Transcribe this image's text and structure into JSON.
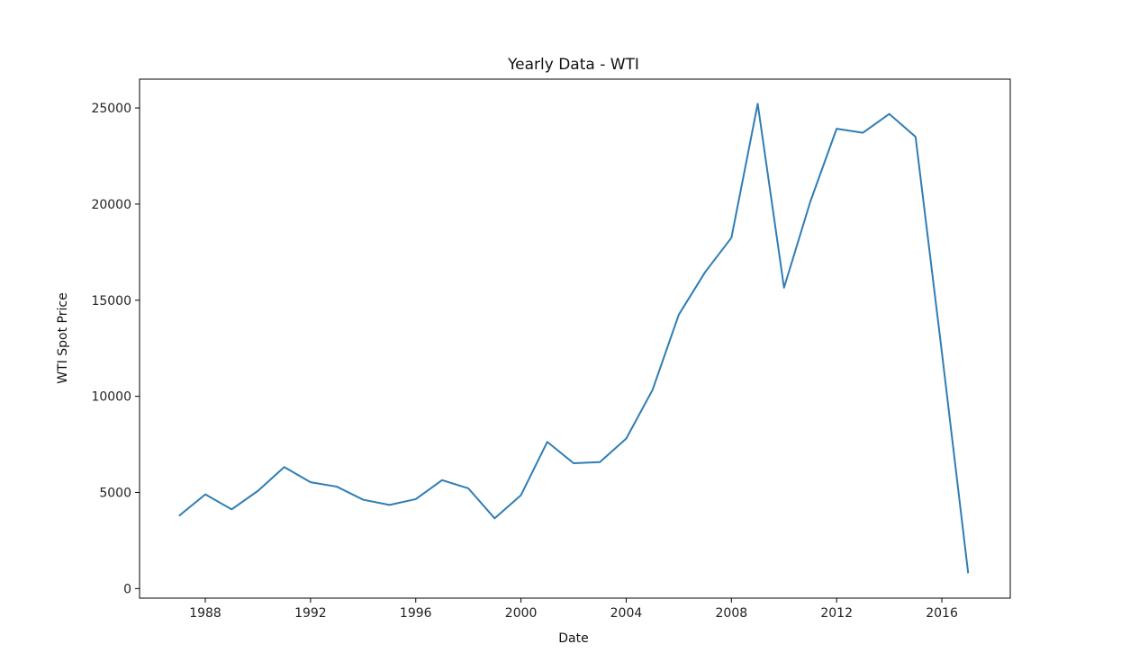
{
  "chart_data": {
    "type": "line",
    "title": "Yearly Data - WTI",
    "xlabel": "Date",
    "ylabel": "WTI Spot Price",
    "xlim": [
      1985.5,
      2018.6
    ],
    "ylim": [
      -500,
      26500
    ],
    "x_ticks": [
      1988,
      1992,
      1996,
      2000,
      2004,
      2008,
      2012,
      2016
    ],
    "y_ticks": [
      0,
      5000,
      10000,
      15000,
      20000,
      25000
    ],
    "grid": false,
    "series": [
      {
        "color": "#2f7db5",
        "x": [
          1987,
          1988,
          1989,
          1990,
          1991,
          1992,
          1993,
          1994,
          1995,
          1996,
          1997,
          1998,
          1999,
          2000,
          2001,
          2002,
          2003,
          2004,
          2005,
          2006,
          2007,
          2008,
          2009,
          2010,
          2011,
          2012,
          2013,
          2014,
          2015,
          2016,
          2017
        ],
        "y": [
          3780,
          4900,
          4120,
          5080,
          6320,
          5530,
          5300,
          4620,
          4350,
          4650,
          5640,
          5210,
          3650,
          4860,
          7630,
          6520,
          6580,
          7800,
          10330,
          14250,
          16460,
          18250,
          25220,
          15650,
          20130,
          23920,
          23710,
          24690,
          23500,
          12300,
          800
        ]
      }
    ]
  }
}
